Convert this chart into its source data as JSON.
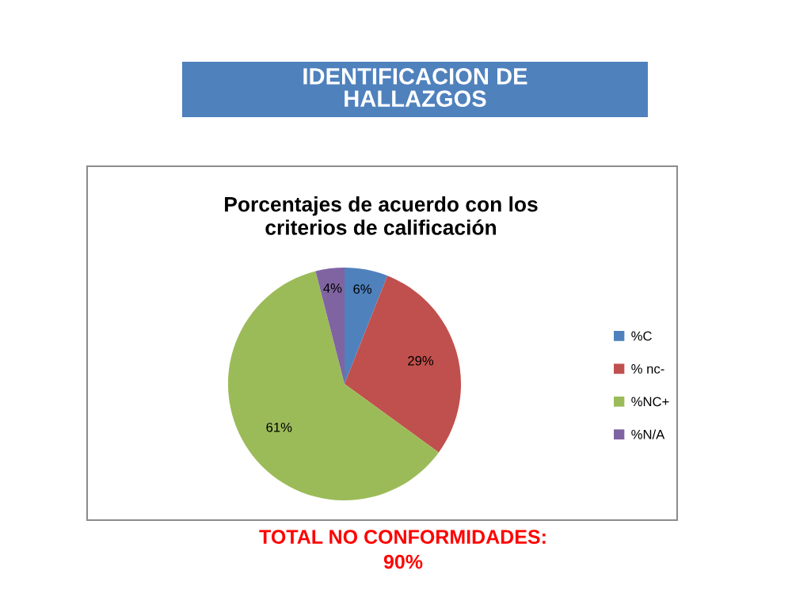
{
  "chart_data": {
    "type": "pie",
    "title": "IDENTIFICACION DE\nHALLAZGOS",
    "subtitle": "Porcentajes de acuerdo con los\ncriterios de calificación",
    "categories": [
      "%C",
      "% nc-",
      "%NC+",
      "%N/A"
    ],
    "values": [
      6,
      29,
      61,
      4
    ],
    "colors": [
      "#4f81bd",
      "#c0504d",
      "#9bbb59",
      "#8064a2"
    ],
    "value_labels": [
      "6%",
      "29%",
      "61%",
      "4%"
    ],
    "legend": "right",
    "annotations": [
      "TOTAL NO CONFORMIDADES:\n90%"
    ]
  }
}
